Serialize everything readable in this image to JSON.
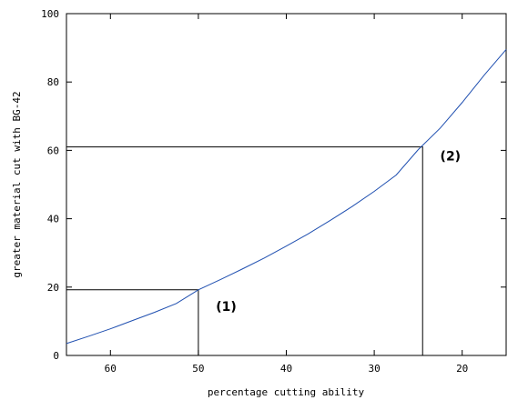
{
  "chart_data": {
    "type": "line",
    "title": "",
    "xlabel": "percentage cutting ability",
    "ylabel": "greater material cut with BG-42",
    "xlim": [
      65,
      15
    ],
    "ylim": [
      0,
      100
    ],
    "x_reversed": true,
    "x_ticks": [
      60,
      50,
      40,
      30,
      20
    ],
    "y_ticks": [
      0,
      20,
      40,
      60,
      80,
      100
    ],
    "grid": false,
    "series": [
      {
        "color": "#1f4fb0",
        "x": [
          65,
          62.5,
          60,
          57.5,
          55,
          52.5,
          50,
          47.5,
          45,
          42.5,
          40,
          37.5,
          35,
          32.5,
          30,
          27.5,
          25,
          22.5,
          20,
          17.5,
          15
        ],
        "y": [
          3.5,
          5.6,
          7.8,
          10.2,
          12.6,
          15.2,
          19.2,
          22.2,
          25.3,
          28.5,
          32,
          35.6,
          39.5,
          43.6,
          48,
          52.8,
          60.2,
          66.5,
          74,
          82,
          89.5
        ]
      }
    ],
    "guides": [
      {
        "x": 50,
        "y": 19.2
      },
      {
        "x": 24.5,
        "y": 61
      }
    ],
    "annotations": [
      {
        "text": "(1)",
        "x": 48,
        "y": 13
      },
      {
        "text": "(2)",
        "x": 22.5,
        "y": 57
      }
    ]
  }
}
